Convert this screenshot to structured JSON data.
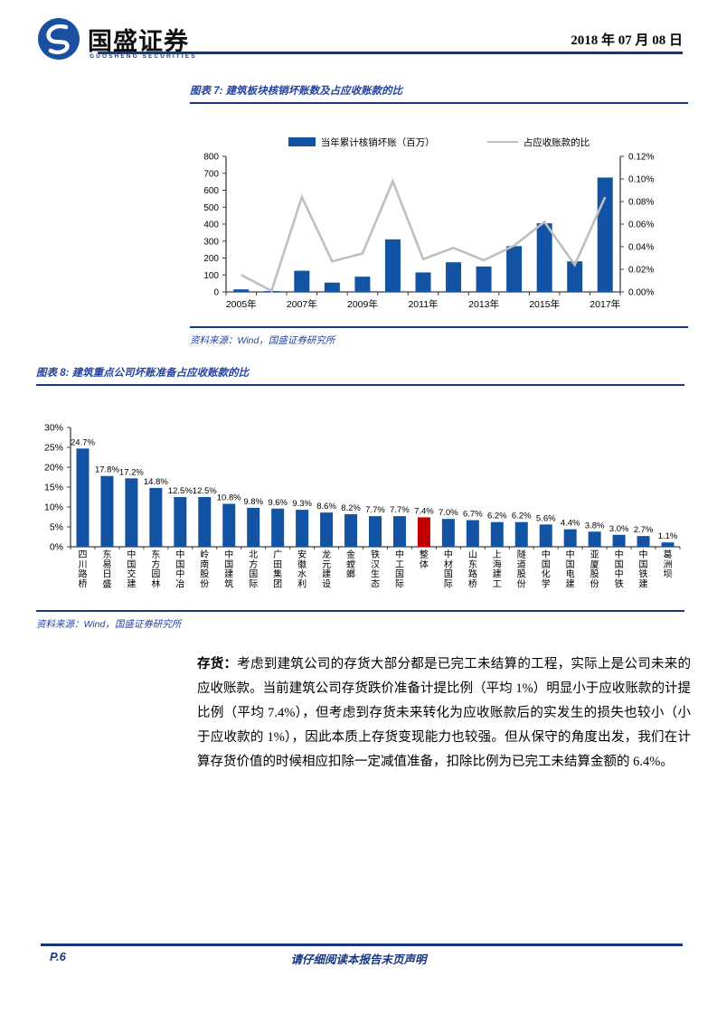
{
  "header": {
    "brand": "国盛证券",
    "brand_sub": "GUOSHENG SECURITIES",
    "date": "2018 年 07 月 08 日"
  },
  "figure7": {
    "title": "图表 7:  建筑板块核销坏账数及占应收账款的比",
    "legend_bar": "当年累计核销坏账（百万）",
    "legend_line": "占应收账款的比",
    "source": "资料来源：Wind，国盛证券研究所"
  },
  "figure8": {
    "title": "图表 8:  建筑重点公司坏账准备占应收账款的比",
    "source": "资料来源：Wind，国盛证券研究所"
  },
  "chart_data": [
    {
      "type": "bar+line",
      "title": "建筑板块核销坏账数及占应收账款的比",
      "categories": [
        "2005",
        "2006",
        "2007",
        "2008",
        "2009",
        "2010",
        "2011",
        "2012",
        "2013",
        "2014",
        "2015",
        "2016",
        "2017"
      ],
      "x_tick_labels": [
        "2005年",
        "2007年",
        "2009年",
        "2011年",
        "2013年",
        "2015年",
        "2017年"
      ],
      "series": [
        {
          "name": "当年累计核销坏账（百万）",
          "type": "bar",
          "axis": "left",
          "color": "#1353a3",
          "values": [
            15,
            5,
            125,
            55,
            90,
            310,
            115,
            175,
            150,
            270,
            405,
            180,
            675
          ]
        },
        {
          "name": "占应收账款的比",
          "type": "line",
          "axis": "right",
          "color": "#bfbfbf",
          "values": [
            0.015,
            0.001,
            0.084,
            0.027,
            0.034,
            0.098,
            0.029,
            0.039,
            0.028,
            0.041,
            0.062,
            0.024,
            0.084
          ]
        }
      ],
      "left_axis": {
        "min": 0,
        "max": 800,
        "step": 100
      },
      "right_axis": {
        "min": 0,
        "max": 0.12,
        "step": 0.02,
        "suffix": "%"
      },
      "grid": false,
      "legend_position": "top"
    },
    {
      "type": "bar",
      "title": "建筑重点公司坏账准备占应收账款的比",
      "ylim": [
        0,
        30
      ],
      "y_step": 5,
      "y_suffix": "%",
      "bar_color": "#1353a3",
      "highlight_color": "#c00000",
      "highlight_index": 14,
      "categories": [
        "四川路桥",
        "东易日盛",
        "中国交建",
        "东方园林",
        "中国中冶",
        "岭南股份",
        "中国建筑",
        "北方国际",
        "广田集团",
        "安徽水利",
        "龙元建设",
        "金螳螂",
        "铁汉生态",
        "中工国际",
        "整体",
        "中材国际",
        "山东路桥",
        "上海建工",
        "隧道股份",
        "中国化学",
        "中国电建",
        "亚厦股份",
        "中国中铁",
        "中国铁建",
        "葛洲坝"
      ],
      "values": [
        24.7,
        17.8,
        17.2,
        14.8,
        12.5,
        12.5,
        10.8,
        9.8,
        9.6,
        9.3,
        8.6,
        8.2,
        7.7,
        7.7,
        7.4,
        7.0,
        6.7,
        6.2,
        6.2,
        5.6,
        4.4,
        3.8,
        3.0,
        2.7,
        1.1
      ],
      "value_labels": [
        "24.7%",
        "17.8%",
        "17.2%",
        "14.8%",
        "12.5%",
        "12.5%",
        "10.8%",
        "9.8%",
        "9.6%",
        "9.3%",
        "8.6%",
        "8.2%",
        "7.7%",
        "7.7%",
        "7.4%",
        "7.0%",
        "6.7%",
        "6.2%",
        "6.2%",
        "5.6%",
        "4.4%",
        "3.8%",
        "3.0%",
        "2.7%",
        "1.1%"
      ],
      "grid": false
    }
  ],
  "paragraph": {
    "lead": "存货：",
    "text": "考虑到建筑公司的存货大部分都是已完工未结算的工程，实际上是公司未来的应收账款。当前建筑公司存货跌价准备计提比例（平均 1%）明显小于应收账款的计提比例（平均 7.4%），但考虑到存货未来转化为应收账款后的实发生的损失也较小（小于应收款的 1%），因此本质上存货变现能力也较强。但从保守的角度出发，我们在计算存货价值的时候相应扣除一定减值准备，扣除比例为已完工未结算金额的 6.4%。"
  },
  "footer": {
    "page": "P.6",
    "disclaimer": "请仔细阅读本报告末页声明"
  },
  "colors": {
    "navy_rule": "#16377f",
    "title_blue": "#2443a0",
    "bar_blue": "#1353a3",
    "highlight_red": "#c00000",
    "line_gray": "#bfbfbf"
  }
}
